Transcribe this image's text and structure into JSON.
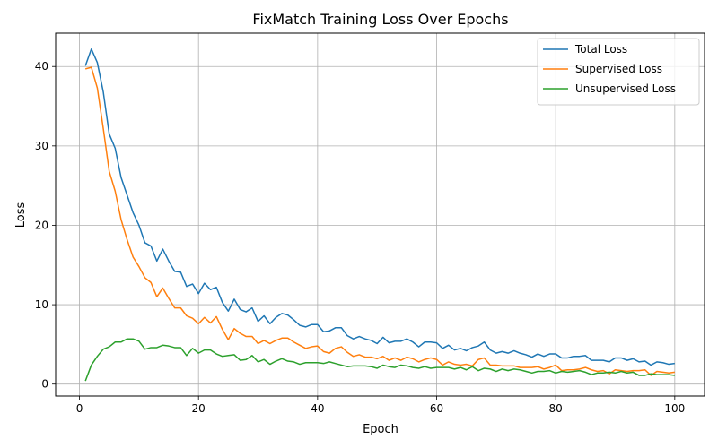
{
  "chart_data": {
    "type": "line",
    "title": "FixMatch Training Loss Over Epochs",
    "xlabel": "Epoch",
    "ylabel": "Loss",
    "xlim": [
      -4,
      105
    ],
    "ylim": [
      -1.5,
      44.2
    ],
    "xticks": [
      0,
      20,
      40,
      60,
      80,
      100
    ],
    "yticks": [
      0,
      10,
      20,
      30,
      40
    ],
    "grid": true,
    "legend_position": "top-right",
    "x": [
      1,
      2,
      3,
      4,
      5,
      6,
      7,
      8,
      9,
      10,
      11,
      12,
      13,
      14,
      15,
      16,
      17,
      18,
      19,
      20,
      21,
      22,
      23,
      24,
      25,
      26,
      27,
      28,
      29,
      30,
      31,
      32,
      33,
      34,
      35,
      36,
      37,
      38,
      39,
      40,
      41,
      42,
      43,
      44,
      45,
      46,
      47,
      48,
      49,
      50,
      51,
      52,
      53,
      54,
      55,
      56,
      57,
      58,
      59,
      60,
      61,
      62,
      63,
      64,
      65,
      66,
      67,
      68,
      69,
      70,
      71,
      72,
      73,
      74,
      75,
      76,
      77,
      78,
      79,
      80,
      81,
      82,
      83,
      84,
      85,
      86,
      87,
      88,
      89,
      90,
      91,
      92,
      93,
      94,
      95,
      96,
      97,
      98,
      99,
      100
    ],
    "series": [
      {
        "name": "Total Loss",
        "color": "#1f77b4",
        "values": [
          40.1,
          42.2,
          40.5,
          36.8,
          31.5,
          29.7,
          26.0,
          23.8,
          21.6,
          20.0,
          17.8,
          17.4,
          15.5,
          17.0,
          15.5,
          14.2,
          14.1,
          12.3,
          12.6,
          11.4,
          12.7,
          11.9,
          12.2,
          10.3,
          9.2,
          10.7,
          9.4,
          9.1,
          9.6,
          7.9,
          8.6,
          7.6,
          8.4,
          8.9,
          8.7,
          8.1,
          7.4,
          7.2,
          7.5,
          7.5,
          6.6,
          6.7,
          7.1,
          7.1,
          6.1,
          5.7,
          6.0,
          5.7,
          5.5,
          5.1,
          5.9,
          5.2,
          5.4,
          5.4,
          5.7,
          5.3,
          4.7,
          5.3,
          5.3,
          5.2,
          4.5,
          4.9,
          4.3,
          4.5,
          4.2,
          4.6,
          4.8,
          5.3,
          4.3,
          3.9,
          4.1,
          3.9,
          4.2,
          3.9,
          3.7,
          3.4,
          3.8,
          3.5,
          3.8,
          3.8,
          3.3,
          3.3,
          3.5,
          3.5,
          3.6,
          3.0,
          3.0,
          3.0,
          2.8,
          3.3,
          3.3,
          3.0,
          3.2,
          2.8,
          2.9,
          2.4,
          2.8,
          2.7,
          2.5,
          2.6
        ]
      },
      {
        "name": "Supervised Loss",
        "color": "#ff7f0e",
        "values": [
          39.7,
          39.9,
          37.3,
          32.2,
          26.8,
          24.3,
          20.7,
          18.2,
          16.0,
          14.8,
          13.4,
          12.8,
          11.0,
          12.1,
          10.8,
          9.6,
          9.6,
          8.6,
          8.3,
          7.6,
          8.4,
          7.7,
          8.5,
          6.9,
          5.6,
          7.0,
          6.4,
          6.0,
          6.0,
          5.1,
          5.5,
          5.1,
          5.5,
          5.8,
          5.8,
          5.3,
          4.9,
          4.5,
          4.7,
          4.8,
          4.1,
          3.9,
          4.5,
          4.7,
          4.0,
          3.5,
          3.7,
          3.4,
          3.4,
          3.2,
          3.5,
          3.0,
          3.3,
          3.0,
          3.4,
          3.2,
          2.8,
          3.1,
          3.3,
          3.1,
          2.4,
          2.8,
          2.5,
          2.4,
          2.5,
          2.3,
          3.1,
          3.3,
          2.4,
          2.4,
          2.3,
          2.3,
          2.3,
          2.1,
          2.1,
          2.1,
          2.2,
          1.9,
          2.1,
          2.4,
          1.7,
          1.8,
          1.8,
          1.9,
          2.1,
          1.8,
          1.6,
          1.7,
          1.3,
          1.8,
          1.7,
          1.6,
          1.7,
          1.7,
          1.8,
          1.1,
          1.6,
          1.5,
          1.4,
          1.5
        ]
      },
      {
        "name": "Unsupervised Loss",
        "color": "#2ca02c",
        "values": [
          0.4,
          2.4,
          3.5,
          4.4,
          4.7,
          5.3,
          5.3,
          5.7,
          5.7,
          5.4,
          4.4,
          4.6,
          4.6,
          4.9,
          4.8,
          4.6,
          4.6,
          3.6,
          4.5,
          3.9,
          4.3,
          4.3,
          3.8,
          3.5,
          3.6,
          3.7,
          3.0,
          3.1,
          3.6,
          2.8,
          3.1,
          2.5,
          2.9,
          3.2,
          2.9,
          2.8,
          2.5,
          2.7,
          2.7,
          2.7,
          2.6,
          2.8,
          2.6,
          2.4,
          2.2,
          2.3,
          2.3,
          2.3,
          2.2,
          2.0,
          2.4,
          2.2,
          2.1,
          2.4,
          2.3,
          2.1,
          2.0,
          2.2,
          2.0,
          2.1,
          2.1,
          2.1,
          1.9,
          2.1,
          1.8,
          2.2,
          1.7,
          2.0,
          1.9,
          1.6,
          1.9,
          1.7,
          1.9,
          1.8,
          1.6,
          1.4,
          1.6,
          1.6,
          1.7,
          1.4,
          1.6,
          1.5,
          1.6,
          1.7,
          1.5,
          1.2,
          1.4,
          1.4,
          1.5,
          1.4,
          1.6,
          1.4,
          1.5,
          1.1,
          1.1,
          1.3,
          1.2,
          1.2,
          1.2,
          1.1
        ]
      }
    ]
  }
}
